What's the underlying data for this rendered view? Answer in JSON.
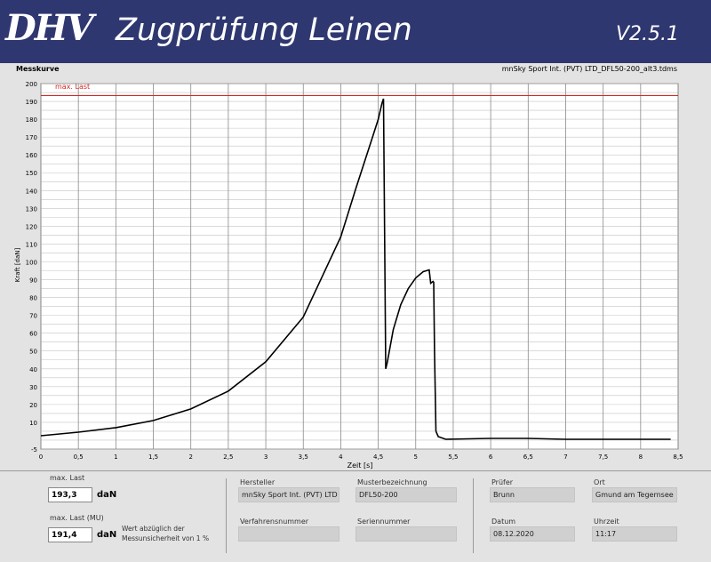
{
  "header": {
    "logo": "DHV",
    "title": "Zugprüfung Leinen",
    "version": "V2.5.1"
  },
  "graph": {
    "label": "Messkurve",
    "file": "mnSky Sport Int. (PVT) LTD_DFL50-200_alt3.tdms",
    "max_line_label": "max. Last"
  },
  "chart_data": {
    "type": "line",
    "xlabel": "Zeit [s]",
    "ylabel": "Kraft [daN]",
    "xlim": [
      0,
      8.5
    ],
    "ylim": [
      -5,
      200
    ],
    "x_ticks": [
      "0",
      "0,5",
      "1",
      "1,5",
      "2",
      "2,5",
      "3",
      "3,5",
      "4",
      "4,5",
      "5",
      "5,5",
      "6",
      "6,5",
      "7",
      "7,5",
      "8",
      "8,5"
    ],
    "y_ticks": [
      "-5",
      "10",
      "20",
      "30",
      "40",
      "50",
      "60",
      "70",
      "80",
      "90",
      "100",
      "110",
      "120",
      "130",
      "140",
      "150",
      "160",
      "170",
      "180",
      "190",
      "200"
    ],
    "grid": true,
    "max_last": 193.3,
    "colors": {
      "curve": "#000000",
      "max_line": "#cc2a2a",
      "grid": "#c4c4c4"
    },
    "series": [
      {
        "x": [
          0,
          0.5,
          1,
          1.5,
          2,
          2.5,
          3,
          3.5,
          4,
          4.2,
          4.4,
          4.5,
          4.55,
          4.57,
          4.6,
          4.62,
          4.7,
          4.8,
          4.9,
          5.0,
          5.1,
          5.18,
          5.2,
          5.23,
          5.24,
          5.25,
          5.27,
          5.3,
          5.4,
          6,
          6.5,
          7,
          7.5,
          8,
          8.4
        ],
        "y": [
          2.5,
          4.5,
          7,
          11,
          17.5,
          27.5,
          44,
          69,
          114,
          141,
          167,
          180,
          189,
          191.5,
          40,
          43.5,
          62,
          76,
          85,
          91,
          94.5,
          95.5,
          88,
          89,
          88.5,
          50,
          5,
          2,
          0.5,
          1,
          1,
          0.5,
          0.5,
          0.5,
          0.5
        ]
      }
    ]
  },
  "results": {
    "max_last_label": "max. Last",
    "max_last_value": "193,3",
    "max_last_unit": "daN",
    "max_last_mu_label": "max. Last (MU)",
    "max_last_mu_value": "191,4",
    "max_last_mu_unit": "daN",
    "note": "Wert abzüglich der Messunsicherheit von 1 %"
  },
  "info": {
    "hersteller_label": "Hersteller",
    "hersteller_value": "mnSky Sport Int. (PVT) LTD",
    "muster_label": "Musterbezeichnung",
    "muster_value": "DFL50-200",
    "verfahren_label": "Verfahrensnummer",
    "verfahren_value": "",
    "serien_label": "Seriennummer",
    "serien_value": "",
    "pruefer_label": "Prüfer",
    "pruefer_value": "Brunn",
    "ort_label": "Ort",
    "ort_value": "Gmund am Tegernsee",
    "datum_label": "Datum",
    "datum_value": "08.12.2020",
    "uhrzeit_label": "Uhrzeit",
    "uhrzeit_value": "11:17"
  }
}
